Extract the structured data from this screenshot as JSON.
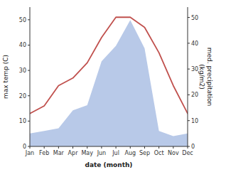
{
  "chart_data": {
    "type": "line",
    "xlabel": "date (month)",
    "ylabel": "max temp (C)",
    "y2label": "med. precipitation\n(kg/m2)",
    "categories": [
      "Jan",
      "Feb",
      "Mar",
      "Apr",
      "May",
      "Jun",
      "Jul",
      "Aug",
      "Sep",
      "Oct",
      "Nov",
      "Dec"
    ],
    "series": [
      {
        "type": "area",
        "axis": "y2",
        "color": "#b8c9e8",
        "values": [
          5,
          6,
          7,
          14,
          16,
          33,
          39,
          49,
          38,
          6,
          4,
          5
        ]
      },
      {
        "type": "line",
        "color": "#c0504d",
        "values": [
          13,
          16,
          24,
          27,
          33,
          43,
          51,
          51,
          47,
          37,
          24,
          13
        ]
      }
    ],
    "ylim": [
      0,
      55
    ],
    "yticks": [
      0,
      10,
      20,
      30,
      40,
      50
    ],
    "y2lim": [
      0,
      54
    ],
    "y2ticks": [
      0,
      10,
      20,
      30,
      40,
      50
    ],
    "grid": false
  }
}
